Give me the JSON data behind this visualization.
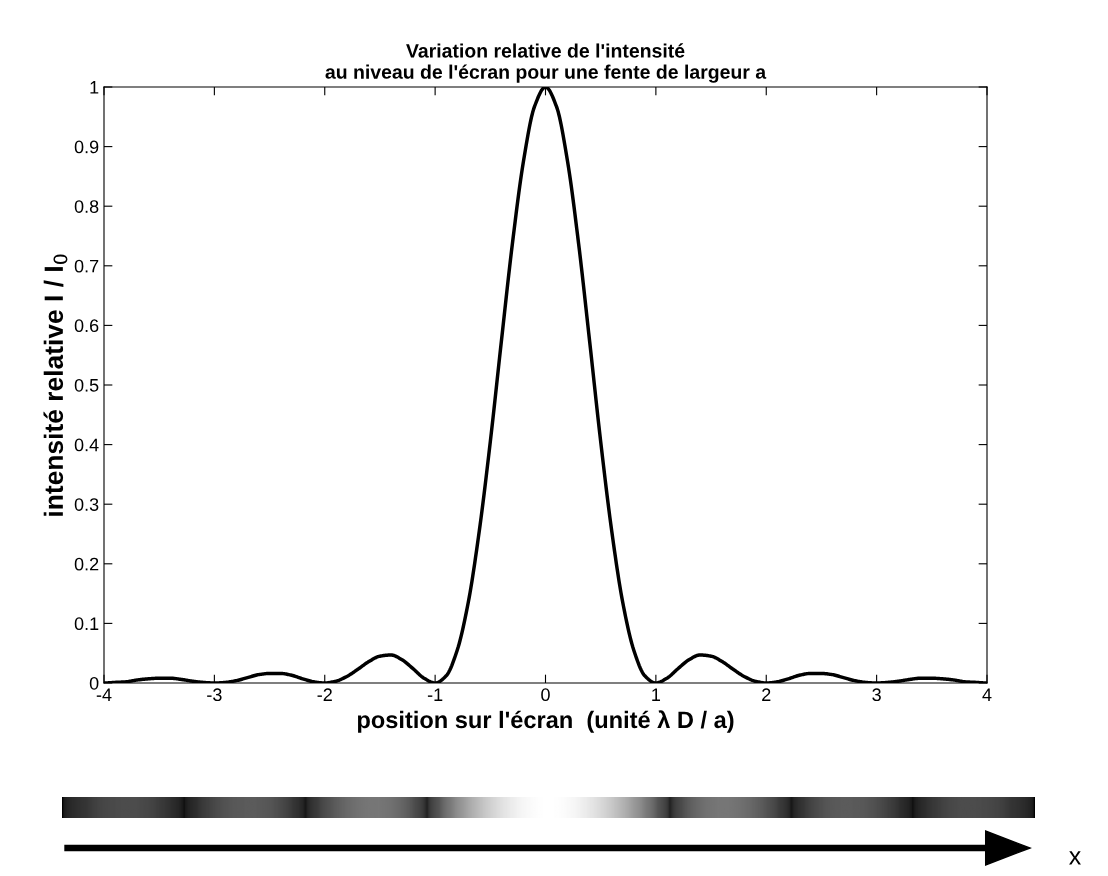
{
  "chart_data": {
    "type": "line",
    "title": "Variation relative de l'intensité\nau niveau de l'écran pour une fente de largeur a",
    "xlabel": "position sur l'écran  (unité λ D / a)",
    "ylabel": "intensité relative I / I$_{0}$",
    "x": [
      -4.0,
      -3.9,
      -3.8,
      -3.7,
      -3.6,
      -3.5,
      -3.4,
      -3.3,
      -3.2,
      -3.1,
      -3.0,
      -2.9,
      -2.8,
      -2.7,
      -2.6,
      -2.5,
      -2.4,
      -2.3,
      -2.2,
      -2.1,
      -2.0,
      -1.9,
      -1.8,
      -1.7,
      -1.6,
      -1.5,
      -1.4,
      -1.3,
      -1.2,
      -1.1,
      -1.0,
      -0.9,
      -0.8,
      -0.7,
      -0.6,
      -0.5,
      -0.4,
      -0.3,
      -0.2,
      -0.1,
      0.0,
      0.1,
      0.2,
      0.3,
      0.4,
      0.5,
      0.6,
      0.7,
      0.8,
      0.9,
      1.0,
      1.1,
      1.2,
      1.3,
      1.4,
      1.5,
      1.6,
      1.7,
      1.8,
      1.9,
      2.0,
      2.1,
      2.2,
      2.3,
      2.4,
      2.5,
      2.6,
      2.7,
      2.8,
      2.9,
      3.0,
      3.1,
      3.2,
      3.3,
      3.4,
      3.5,
      3.6,
      3.7,
      3.8,
      3.9,
      4.0
    ],
    "series": [
      {
        "color": "#000000",
        "values": [
          0,
          0.001,
          0.002,
          0.005,
          0.007,
          0.008,
          0.008,
          0.006,
          0.003,
          0.001,
          0,
          0.001,
          0.004,
          0.009,
          0.014,
          0.016,
          0.016,
          0.013,
          0.007,
          0.002,
          0,
          0.003,
          0.011,
          0.023,
          0.036,
          0.045,
          0.047,
          0.039,
          0.024,
          0.008,
          0,
          0.012,
          0.055,
          0.135,
          0.255,
          0.405,
          0.573,
          0.737,
          0.875,
          0.967,
          1,
          0.967,
          0.875,
          0.737,
          0.573,
          0.405,
          0.255,
          0.135,
          0.055,
          0.012,
          0,
          0.008,
          0.024,
          0.039,
          0.047,
          0.045,
          0.036,
          0.023,
          0.011,
          0.003,
          0,
          0.002,
          0.007,
          0.013,
          0.016,
          0.016,
          0.014,
          0.009,
          0.004,
          0.001,
          0,
          0.001,
          0.003,
          0.006,
          0.008,
          0.008,
          0.007,
          0.005,
          0.002,
          0.001,
          0
        ]
      }
    ],
    "xlim": [
      -4,
      4
    ],
    "xticks": [
      -4,
      -3,
      -2,
      -1,
      0,
      1,
      2,
      3,
      4
    ],
    "ylim": [
      0,
      1
    ],
    "yticks": [
      0,
      0.1,
      0.2,
      0.3,
      0.4,
      0.5,
      0.6,
      0.7,
      0.8,
      0.9,
      1
    ],
    "grid": false,
    "legend": false,
    "annotations": [
      "x"
    ]
  }
}
